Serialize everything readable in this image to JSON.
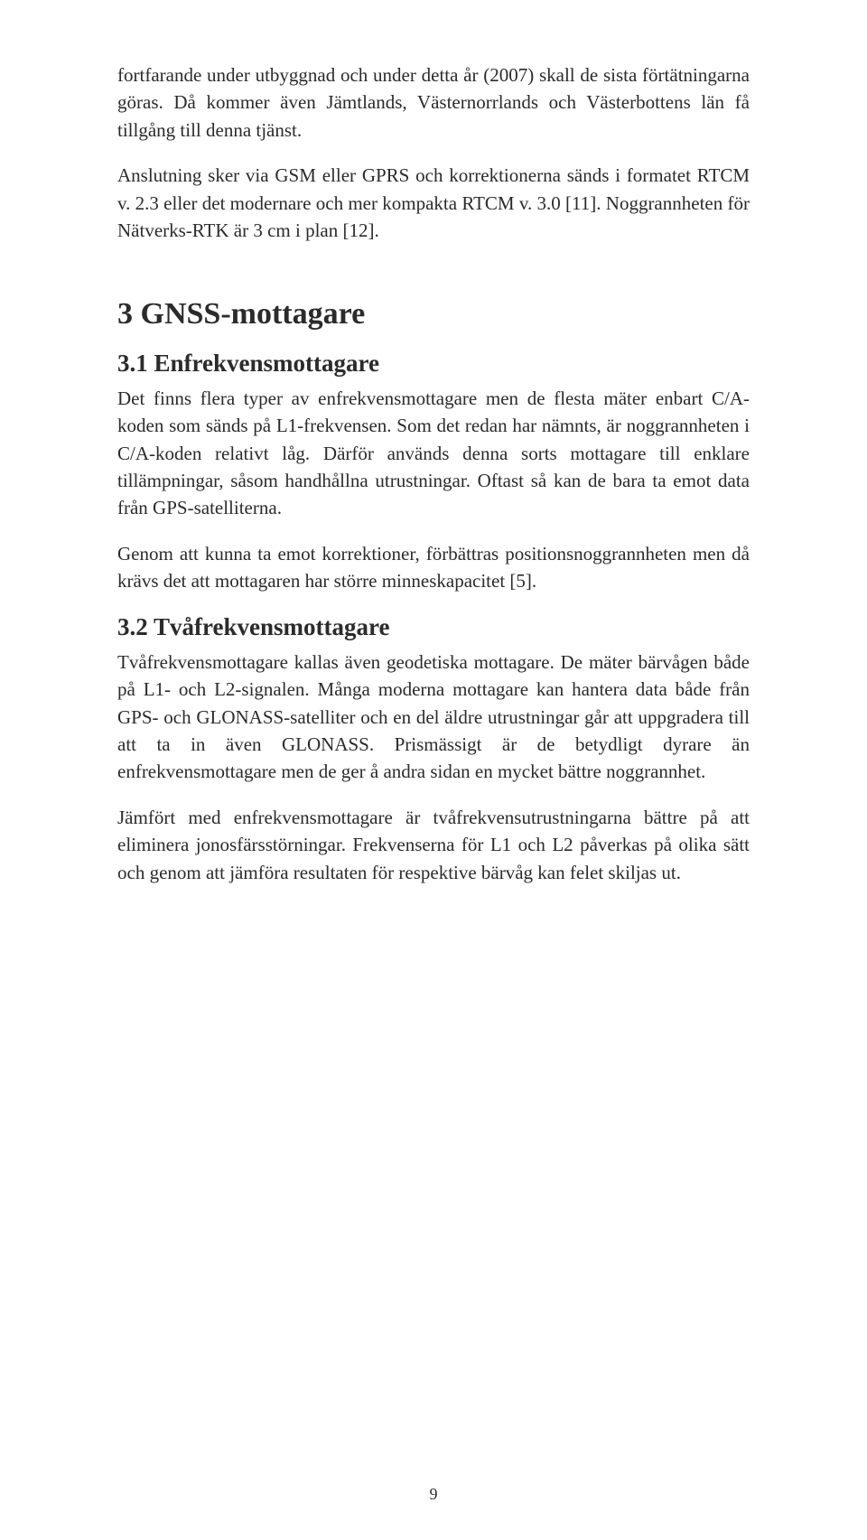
{
  "intro_para1": "fortfarande under utbyggnad och under detta år (2007) skall de sista förtätningarna göras. Då kommer även Jämtlands, Västernorrlands och Västerbottens län få tillgång till denna tjänst.",
  "intro_para2": "Anslutning sker via GSM eller GPRS och korrektionerna sänds i formatet RTCM v. 2.3 eller det modernare och mer kompakta RTCM v. 3.0 [11]. Noggrannheten för Nätverks-RTK är 3 cm i plan [12].",
  "chapter3_title": "3 GNSS-mottagare",
  "section31_title": "3.1 Enfrekvensmottagare",
  "section31_para1": "Det finns flera typer av enfrekvensmottagare men de flesta mäter enbart C/A-koden som sänds på L1-frekvensen. Som det redan har nämnts, är noggrannheten i C/A-koden relativt låg. Därför används denna sorts mottagare till enklare tillämpningar, såsom handhållna utrustningar. Oftast så kan de bara ta emot data från GPS-satelliterna.",
  "section31_para2": "Genom att kunna ta emot korrektioner, förbättras positionsnoggrannheten men då krävs det att mottagaren har större minneskapacitet [5].",
  "section32_title": "3.2 Tvåfrekvensmottagare",
  "section32_para1": "Tvåfrekvensmottagare kallas även geodetiska mottagare. De mäter bär­vågen både på L1- och L2-signalen. Många moderna mottagare kan hantera data både från GPS- och GLONASS-satelliter och en del äldre utrustningar går att uppgradera till att ta in även GLONASS. Prismässigt är de betydligt dyrare än enfrekvensmottagare men de ger å andra sidan en mycket bättre noggrannhet.",
  "section32_para2": "Jämfört med enfrekvensmottagare är tvåfrekvensutrustningarna bättre på att eliminera jonosfärsstörningar. Frekvenserna för L1 och L2 påverkas på olika sätt och genom att jämföra resultaten för respektive bärvåg kan felet skiljas ut.",
  "page_number": "9"
}
